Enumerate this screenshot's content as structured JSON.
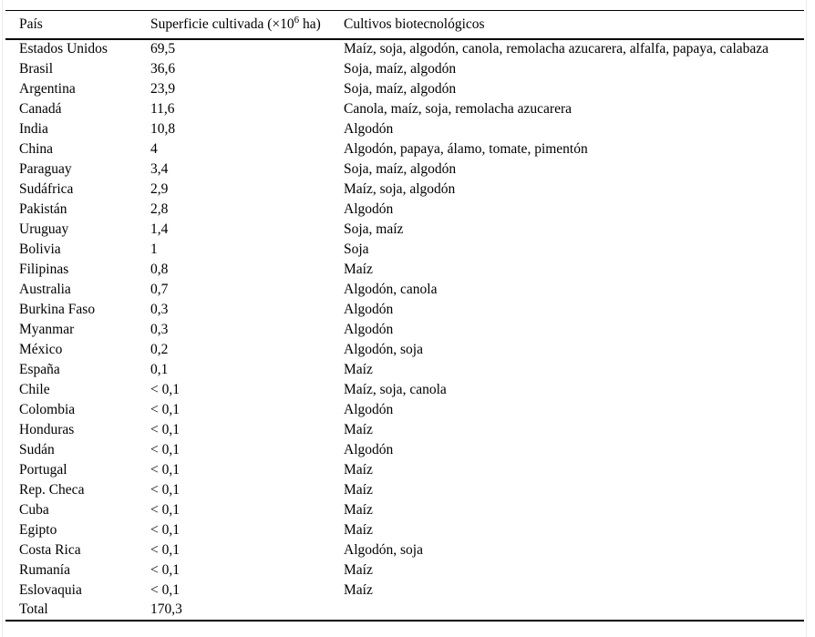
{
  "colors": {
    "background": "#ffffff",
    "text": "#000000",
    "rule": "#000000"
  },
  "table": {
    "header": {
      "pais": "País",
      "superficie_prefix": "Superficie cultivada (×10",
      "superficie_sup": "6",
      "superficie_suffix": " ha)",
      "cultivos": "Cultivos biotecnológicos"
    },
    "rows": [
      {
        "country": "Estados Unidos",
        "area": "69,5",
        "crops": "Maíz, soja, algodón, canola, remolacha azucarera, alfalfa, papaya, calabaza"
      },
      {
        "country": "Brasil",
        "area": "36,6",
        "crops": "Soja, maíz, algodón"
      },
      {
        "country": "Argentina",
        "area": "23,9",
        "crops": "Soja, maíz, algodón"
      },
      {
        "country": "Canadá",
        "area": "11,6",
        "crops": "Canola, maíz, soja, remolacha azucarera"
      },
      {
        "country": "India",
        "area": "10,8",
        "crops": "Algodón"
      },
      {
        "country": "China",
        "area": "4",
        "crops": "Algodón, papaya, álamo, tomate, pimentón"
      },
      {
        "country": "Paraguay",
        "area": "3,4",
        "crops": "Soja, maíz, algodón"
      },
      {
        "country": "Sudáfrica",
        "area": "2,9",
        "crops": "Maíz, soja, algodón"
      },
      {
        "country": "Pakistán",
        "area": "2,8",
        "crops": "Algodón"
      },
      {
        "country": "Uruguay",
        "area": "1,4",
        "crops": "Soja, maíz"
      },
      {
        "country": "Bolivia",
        "area": "1",
        "crops": "Soja"
      },
      {
        "country": "Filipinas",
        "area": "0,8",
        "crops": "Maíz"
      },
      {
        "country": "Australia",
        "area": "0,7",
        "crops": "Algodón, canola"
      },
      {
        "country": "Burkina Faso",
        "area": "0,3",
        "crops": "Algodón"
      },
      {
        "country": "Myanmar",
        "area": "0,3",
        "crops": "Algodón"
      },
      {
        "country": "México",
        "area": "0,2",
        "crops": "Algodón, soja"
      },
      {
        "country": "España",
        "area": "0,1",
        "crops": "Maíz"
      },
      {
        "country": "Chile",
        "area": "< 0,1",
        "crops": "Maíz, soja, canola"
      },
      {
        "country": "Colombia",
        "area": "< 0,1",
        "crops": "Algodón"
      },
      {
        "country": "Honduras",
        "area": "< 0,1",
        "crops": "Maíz"
      },
      {
        "country": "Sudán",
        "area": "< 0,1",
        "crops": "Algodón"
      },
      {
        "country": "Portugal",
        "area": "< 0,1",
        "crops": "Maíz"
      },
      {
        "country": "Rep. Checa",
        "area": "< 0,1",
        "crops": "Maíz"
      },
      {
        "country": "Cuba",
        "area": "< 0,1",
        "crops": "Maíz"
      },
      {
        "country": "Egipto",
        "area": "< 0,1",
        "crops": "Maíz"
      },
      {
        "country": "Costa Rica",
        "area": "< 0,1",
        "crops": "Algodón, soja"
      },
      {
        "country": "Rumanía",
        "area": "< 0,1",
        "crops": "Maíz"
      },
      {
        "country": "Eslovaquia",
        "area": "< 0,1",
        "crops": "Maíz"
      },
      {
        "country": "Total",
        "area": "170,3",
        "crops": ""
      }
    ]
  }
}
